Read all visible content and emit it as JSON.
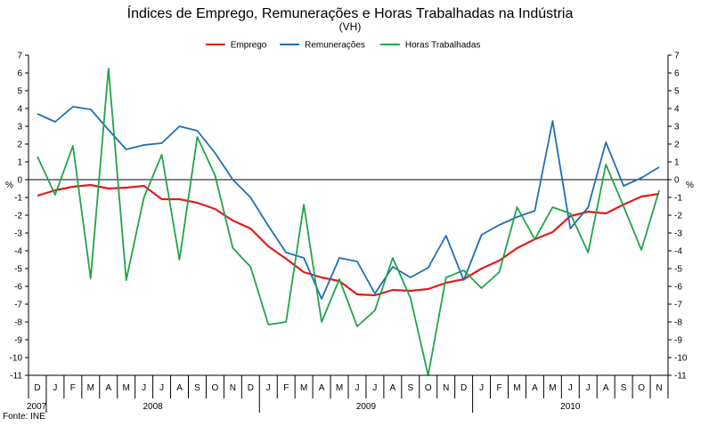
{
  "chart_data": {
    "type": "line",
    "title": "Índices de Emprego, Remunerações e Horas Trabalhadas na Indústria",
    "subtitle": "(VH)",
    "ylabel": "%",
    "source": "Fonte: INE",
    "ylim": [
      -11,
      7
    ],
    "yticks": [
      7,
      6,
      5,
      4,
      3,
      2,
      1,
      0,
      -1,
      -2,
      -3,
      -4,
      -5,
      -6,
      -7,
      -8,
      -9,
      -10,
      -11
    ],
    "grid": false,
    "legend": "top-center",
    "categories": [
      "D",
      "J",
      "F",
      "M",
      "A",
      "M",
      "J",
      "J",
      "A",
      "S",
      "O",
      "N",
      "D",
      "J",
      "F",
      "M",
      "A",
      "M",
      "J",
      "J",
      "A",
      "S",
      "O",
      "N",
      "D",
      "J",
      "F",
      "M",
      "A",
      "M",
      "J",
      "J",
      "A",
      "S",
      "O",
      "N"
    ],
    "year_labels": [
      {
        "label": "2007",
        "start": 0,
        "end": 0
      },
      {
        "label": "2008",
        "start": 1,
        "end": 12
      },
      {
        "label": "2009",
        "start": 13,
        "end": 24
      },
      {
        "label": "2010",
        "start": 25,
        "end": 35
      }
    ],
    "series": [
      {
        "name": "Emprego",
        "color": "#e41a1c",
        "values": [
          -0.9,
          -0.6,
          -0.4,
          -0.3,
          -0.5,
          -0.45,
          -0.35,
          -1.1,
          -1.1,
          -1.3,
          -1.65,
          -2.3,
          -2.75,
          -3.75,
          -4.45,
          -5.2,
          -5.5,
          -5.7,
          -6.45,
          -6.5,
          -6.2,
          -6.25,
          -6.15,
          -5.8,
          -5.6,
          -5.0,
          -4.55,
          -3.85,
          -3.35,
          -2.95,
          -2.05,
          -1.8,
          -1.9,
          -1.4,
          -0.95,
          -0.8
        ]
      },
      {
        "name": "Remunerações",
        "color": "#1f6fb2",
        "values": [
          3.7,
          3.25,
          4.1,
          3.95,
          2.8,
          1.7,
          1.95,
          2.05,
          3.0,
          2.75,
          1.5,
          0.0,
          -1.0,
          -2.6,
          -4.1,
          -4.4,
          -6.7,
          -4.4,
          -4.6,
          -6.4,
          -4.9,
          -5.5,
          -4.95,
          -3.15,
          -5.65,
          -3.1,
          -2.55,
          -2.1,
          -1.75,
          3.3,
          -2.75,
          -1.55,
          2.1,
          -0.35,
          0.1,
          0.7
        ]
      },
      {
        "name": "Horas Trabalhadas",
        "color": "#22a34a",
        "values": [
          1.3,
          -0.85,
          1.9,
          -5.55,
          6.25,
          -5.65,
          -1.0,
          1.4,
          -4.5,
          2.4,
          0.25,
          -3.85,
          -4.9,
          -8.15,
          -8.0,
          -1.4,
          -8.0,
          -5.6,
          -8.25,
          -7.35,
          -4.4,
          -6.65,
          -11.0,
          -5.5,
          -5.1,
          -6.1,
          -5.2,
          -1.55,
          -3.35,
          -1.55,
          -1.9,
          -4.1,
          0.85,
          -1.5,
          -3.95,
          -0.6
        ]
      }
    ]
  }
}
